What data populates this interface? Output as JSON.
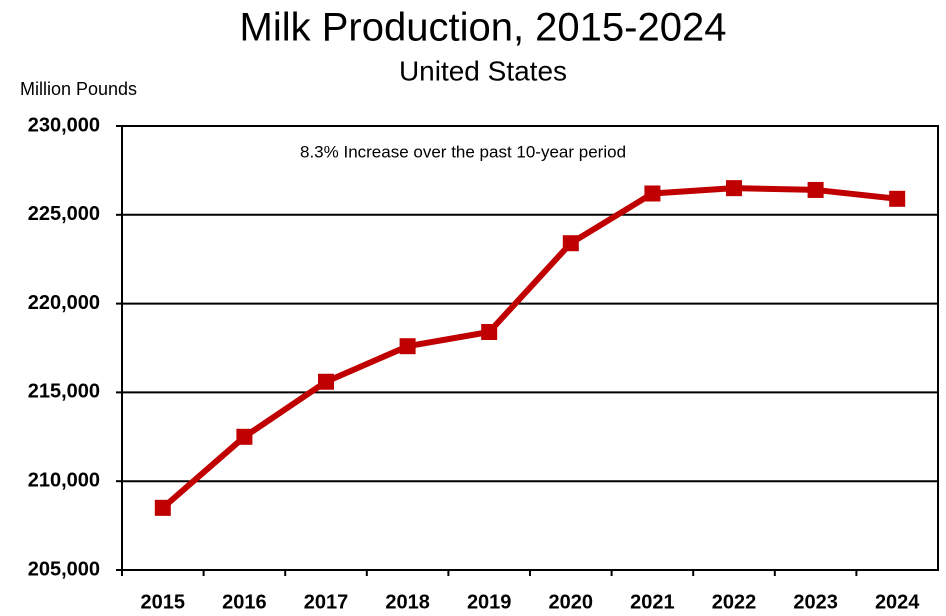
{
  "chart_data": {
    "type": "line",
    "title": "Milk Production, 2015-2024",
    "subtitle": "United States",
    "y_label": "Million Pounds",
    "annotation": "8.3% Increase over the past 10-year period",
    "categories": [
      "2015",
      "2016",
      "2017",
      "2018",
      "2019",
      "2020",
      "2021",
      "2022",
      "2023",
      "2024"
    ],
    "series": [
      {
        "name": "Milk Production",
        "color": "#c00000",
        "values": [
          208500,
          212500,
          215600,
          217600,
          218400,
          223400,
          226200,
          226500,
          226400,
          225900
        ]
      }
    ],
    "ylim": [
      205000,
      230000
    ],
    "yticks": [
      {
        "value": 205000,
        "label": "205,000"
      },
      {
        "value": 210000,
        "label": "210,000"
      },
      {
        "value": 215000,
        "label": "215,000"
      },
      {
        "value": 220000,
        "label": "220,000"
      },
      {
        "value": 225000,
        "label": "225,000"
      },
      {
        "value": 230000,
        "label": "230,000"
      }
    ],
    "grid": true
  }
}
